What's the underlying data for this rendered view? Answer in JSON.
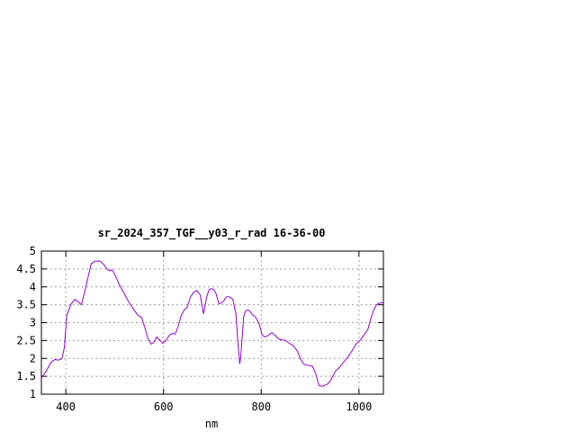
{
  "chart_data": {
    "type": "line",
    "title": "sr_2024_357_TGF__y03_r_rad 16-36-00",
    "xlabel": "nm",
    "ylabel": "",
    "xlim": [
      350,
      1050
    ],
    "ylim": [
      1,
      5
    ],
    "xticks": [
      400,
      600,
      800,
      1000
    ],
    "yticks": [
      1,
      1.5,
      2,
      2.5,
      3,
      3.5,
      4,
      4.5,
      5
    ],
    "ytick_labels": [
      "1",
      "1.5",
      "2",
      "2.5",
      "3",
      "3.5",
      "4",
      "4.5",
      "5"
    ],
    "grid": true,
    "series": [
      {
        "color": "#9400d3",
        "x": [
          350,
          360,
          370,
          378,
          385,
          392,
          397,
          402,
          410,
          418,
          425,
          432,
          440,
          446,
          452,
          460,
          470,
          478,
          484,
          490,
          495,
          500,
          510,
          520,
          530,
          540,
          548,
          555,
          562,
          568,
          575,
          580,
          586,
          592,
          598,
          605,
          612,
          618,
          624,
          630,
          636,
          642,
          648,
          655,
          662,
          668,
          675,
          682,
          688,
          693,
          698,
          703,
          708,
          713,
          718,
          723,
          728,
          735,
          742,
          748,
          752,
          756,
          758,
          761,
          764,
          767,
          770,
          774,
          778,
          782,
          786,
          790,
          796,
          802,
          808,
          815,
          822,
          828,
          835,
          842,
          850,
          858,
          866,
          874,
          880,
          886,
          892,
          898,
          905,
          912,
          918,
          924,
          930,
          935,
          940,
          946,
          952,
          958,
          964,
          970,
          978,
          986,
          994,
          1002,
          1010,
          1018,
          1024,
          1030,
          1036,
          1042,
          1050
        ],
        "y": [
          1.45,
          1.65,
          1.9,
          1.97,
          1.95,
          2.0,
          2.3,
          3.2,
          3.5,
          3.65,
          3.58,
          3.5,
          3.95,
          4.3,
          4.65,
          4.72,
          4.72,
          4.62,
          4.5,
          4.45,
          4.48,
          4.35,
          4.05,
          3.8,
          3.55,
          3.35,
          3.2,
          3.15,
          2.85,
          2.55,
          2.4,
          2.45,
          2.6,
          2.52,
          2.42,
          2.5,
          2.65,
          2.7,
          2.68,
          2.9,
          3.2,
          3.35,
          3.42,
          3.72,
          3.85,
          3.9,
          3.78,
          3.25,
          3.7,
          3.92,
          3.95,
          3.92,
          3.8,
          3.52,
          3.55,
          3.6,
          3.72,
          3.72,
          3.65,
          3.25,
          2.5,
          1.85,
          2.05,
          2.6,
          3.15,
          3.3,
          3.35,
          3.35,
          3.3,
          3.22,
          3.18,
          3.12,
          2.95,
          2.65,
          2.6,
          2.65,
          2.72,
          2.65,
          2.55,
          2.52,
          2.5,
          2.42,
          2.35,
          2.2,
          2.0,
          1.85,
          1.82,
          1.8,
          1.78,
          1.55,
          1.25,
          1.22,
          1.25,
          1.28,
          1.35,
          1.48,
          1.65,
          1.72,
          1.82,
          1.92,
          2.05,
          2.22,
          2.4,
          2.5,
          2.65,
          2.8,
          3.1,
          3.35,
          3.5,
          3.55,
          3.55
        ]
      }
    ]
  }
}
